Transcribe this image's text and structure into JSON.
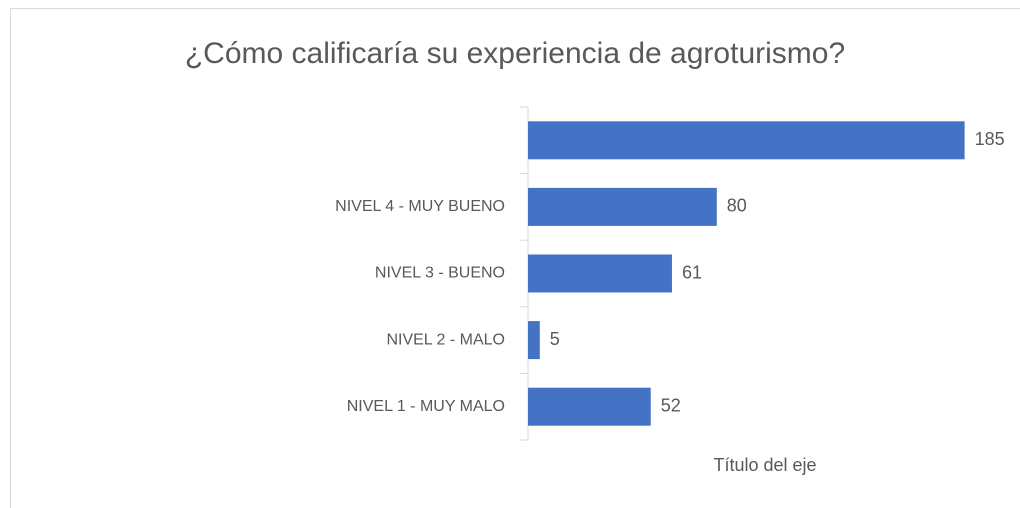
{
  "chart_data": {
    "type": "barh",
    "title": "¿Cómo calificaría su experiencia de agroturismo?",
    "categories": [
      null,
      "NIVEL 4 - MUY BUENO",
      "NIVEL 3 - BUENO",
      "NIVEL 2 - MALO",
      "NIVEL 1 - MUY MALO"
    ],
    "values": [
      185,
      80,
      61,
      5,
      52
    ],
    "color": "#4472c4",
    "xlabel": "Título del eje",
    "xlim": [
      0,
      200
    ],
    "data_labels": true
  }
}
